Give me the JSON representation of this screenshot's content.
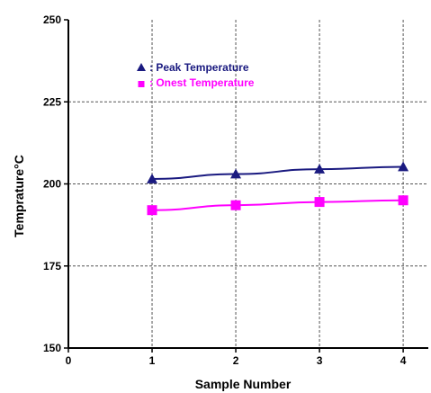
{
  "chart_data": {
    "type": "line",
    "xlabel": "Sample Number",
    "ylabel": "Temprature°C",
    "xlim": [
      0,
      4.3
    ],
    "ylim": [
      150,
      250
    ],
    "x_ticks": [
      "0",
      "1",
      "2",
      "3",
      "4"
    ],
    "y_ticks": [
      "150",
      "175",
      "200",
      "225",
      "250"
    ],
    "grid": true,
    "legend_position": "top-left",
    "x": [
      1,
      2,
      3,
      4
    ],
    "series": [
      {
        "name": "Peak Temperature",
        "legend_label": ": Peak Temperature",
        "values": [
          201.5,
          203,
          204.5,
          205.2
        ],
        "color": "#1a1a80",
        "marker": "triangle"
      },
      {
        "name": "Onest Temperature",
        "legend_label": ": Onest Temperature",
        "values": [
          192,
          193.5,
          194.5,
          195
        ],
        "color": "#ff00ff",
        "marker": "square"
      }
    ]
  }
}
